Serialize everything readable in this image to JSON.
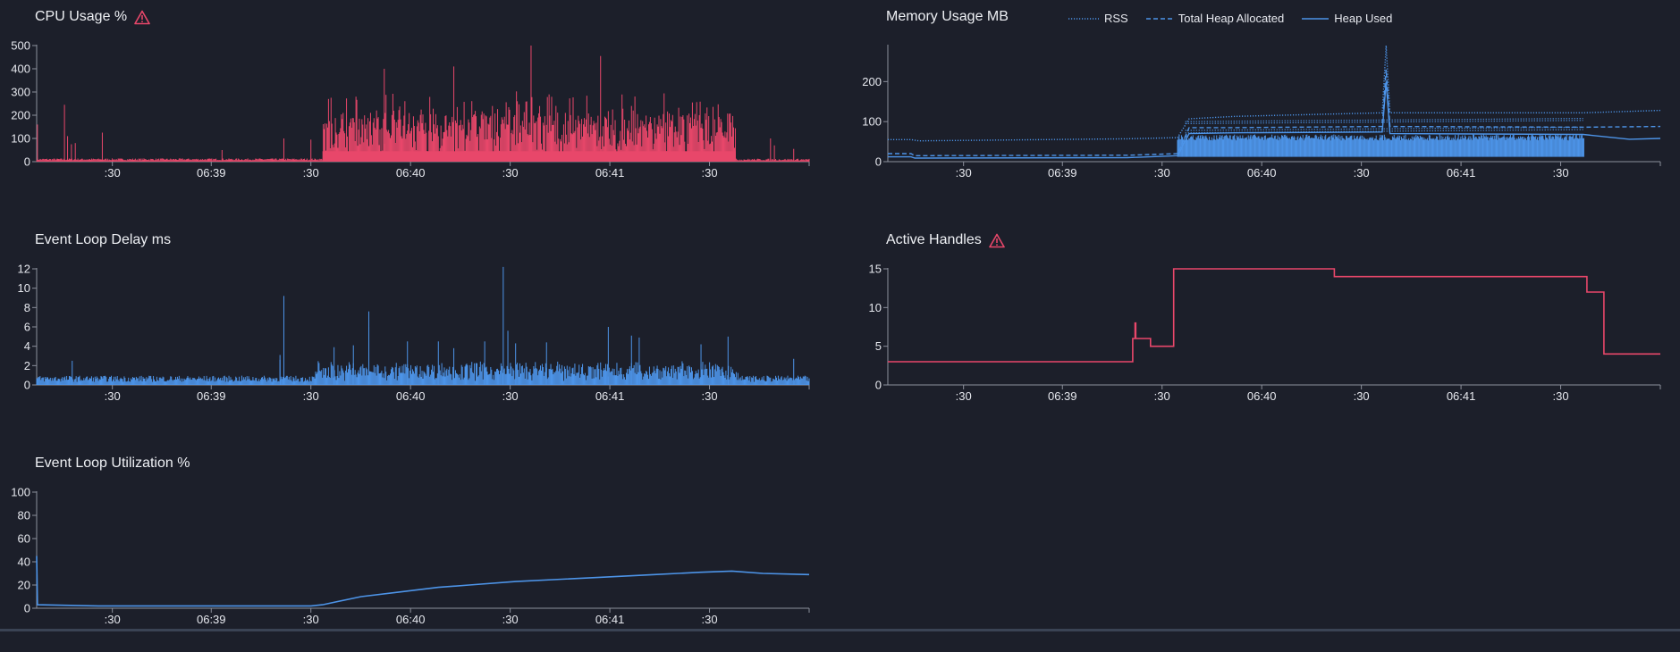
{
  "colors": {
    "background": "#1c1f2a",
    "red": "#e8476a",
    "blue": "#4d94e8",
    "axis": "#8c909c",
    "text": "#e6e8ee"
  },
  "x_ticks": [
    ":30",
    "06:39",
    ":30",
    "06:40",
    ":30",
    "06:41",
    ":30"
  ],
  "icons": {
    "warning": "warning-triangle-icon"
  },
  "chart_data": [
    {
      "id": "cpu",
      "type": "bar",
      "title": "CPU Usage %",
      "warning": true,
      "ylim": [
        0,
        500
      ],
      "yticks": [
        "0",
        "100",
        "200",
        "300",
        "400",
        "500"
      ],
      "color": "#e8476a",
      "segments": [
        {
          "from": 0.0,
          "to": 0.37,
          "base": 6,
          "noise": 8,
          "spikes": [
            [
              0.001,
              160
            ],
            [
              0.036,
              245
            ],
            [
              0.04,
              110
            ],
            [
              0.045,
              75
            ],
            [
              0.05,
              80
            ],
            [
              0.085,
              125
            ],
            [
              0.24,
              50
            ],
            [
              0.32,
              100
            ],
            [
              0.355,
              95
            ]
          ]
        },
        {
          "from": 0.37,
          "to": 0.905,
          "base": 160,
          "noise": 160,
          "spikes": [
            [
              0.64,
              500
            ],
            [
              0.73,
              455
            ],
            [
              0.54,
              410
            ],
            [
              0.45,
              400
            ]
          ]
        },
        {
          "from": 0.905,
          "to": 1.0,
          "base": 5,
          "noise": 8,
          "spikes": [
            [
              0.95,
              100
            ],
            [
              0.955,
              70
            ],
            [
              0.98,
              55
            ]
          ]
        }
      ]
    },
    {
      "id": "memory",
      "type": "line",
      "title": "Memory Usage MB",
      "warning": false,
      "ylim": [
        0,
        290
      ],
      "yticks": [
        "0",
        "100",
        "200"
      ],
      "series": [
        {
          "name": "RSS",
          "style": "dotted",
          "points": [
            [
              0.0,
              55
            ],
            [
              0.03,
              55
            ],
            [
              0.04,
              52
            ],
            [
              0.31,
              57
            ],
            [
              0.375,
              60
            ],
            [
              0.39,
              107
            ],
            [
              0.45,
              113
            ],
            [
              0.64,
              122
            ],
            [
              0.645,
              290
            ],
            [
              0.65,
              122
            ],
            [
              0.9,
              122
            ],
            [
              1.0,
              128
            ]
          ]
        },
        {
          "name": "Total Heap Allocated",
          "style": "dashed",
          "points": [
            [
              0.0,
              20
            ],
            [
              0.03,
              20
            ],
            [
              0.035,
              15
            ],
            [
              0.31,
              16
            ],
            [
              0.375,
              20
            ],
            [
              0.39,
              85
            ],
            [
              0.45,
              85
            ],
            [
              0.64,
              88
            ],
            [
              0.645,
              230
            ],
            [
              0.65,
              88
            ],
            [
              0.9,
              86
            ],
            [
              1.0,
              88
            ]
          ]
        },
        {
          "name": "Heap Used",
          "style": "solid",
          "points": [
            [
              0.0,
              12
            ],
            [
              0.03,
              12
            ],
            [
              0.035,
              9
            ],
            [
              0.31,
              10
            ],
            [
              0.375,
              15
            ],
            [
              0.39,
              70
            ],
            [
              0.45,
              72
            ],
            [
              0.64,
              74
            ],
            [
              0.645,
              200
            ],
            [
              0.65,
              70
            ],
            [
              0.9,
              68
            ],
            [
              0.96,
              56
            ],
            [
              1.0,
              58
            ]
          ]
        }
      ],
      "heap_fill": {
        "from": 0.375,
        "to": 0.902,
        "low": 12,
        "high": 68
      }
    },
    {
      "id": "eld",
      "type": "line",
      "title": "Event Loop Delay ms",
      "warning": false,
      "ylim": [
        0,
        12
      ],
      "yticks": [
        "0",
        "2",
        "4",
        "6",
        "8",
        "10",
        "12"
      ],
      "color": "#4d94e8",
      "baseline": 0.8,
      "spikes": [
        [
          0.046,
          2.5
        ],
        [
          0.315,
          2.6
        ],
        [
          0.315,
          3.1
        ],
        [
          0.32,
          9.2
        ],
        [
          0.385,
          3.9
        ],
        [
          0.41,
          4.1
        ],
        [
          0.43,
          7.6
        ],
        [
          0.43,
          6.0
        ],
        [
          0.48,
          4.5
        ],
        [
          0.52,
          4.5
        ],
        [
          0.54,
          3.8
        ],
        [
          0.58,
          4.5
        ],
        [
          0.604,
          12.2
        ],
        [
          0.61,
          5.6
        ],
        [
          0.62,
          4.3
        ],
        [
          0.66,
          4.4
        ],
        [
          0.74,
          6.0
        ],
        [
          0.77,
          5.1
        ],
        [
          0.78,
          4.9
        ],
        [
          0.86,
          4.2
        ],
        [
          0.895,
          5.0
        ],
        [
          0.98,
          2.7
        ]
      ]
    },
    {
      "id": "handles",
      "type": "line",
      "title": "Active Handles",
      "warning": true,
      "ylim": [
        0,
        15
      ],
      "yticks": [
        "0",
        "5",
        "10",
        "15"
      ],
      "color": "#e8476a",
      "points": [
        [
          0.0,
          3
        ],
        [
          0.317,
          3
        ],
        [
          0.317,
          6
        ],
        [
          0.32,
          6
        ],
        [
          0.32,
          8
        ],
        [
          0.321,
          8
        ],
        [
          0.321,
          6
        ],
        [
          0.34,
          6
        ],
        [
          0.34,
          5
        ],
        [
          0.37,
          5
        ],
        [
          0.37,
          15
        ],
        [
          0.578,
          15
        ],
        [
          0.578,
          14
        ],
        [
          0.905,
          14
        ],
        [
          0.905,
          12
        ],
        [
          0.927,
          12
        ],
        [
          0.927,
          4
        ],
        [
          1.0,
          4
        ]
      ]
    },
    {
      "id": "elu",
      "type": "line",
      "title": "Event Loop Utilization %",
      "warning": false,
      "ylim": [
        0,
        100
      ],
      "yticks": [
        "0",
        "20",
        "40",
        "60",
        "80",
        "100"
      ],
      "color": "#4d94e8",
      "points": [
        [
          0.0,
          45
        ],
        [
          0.001,
          3
        ],
        [
          0.08,
          2
        ],
        [
          0.355,
          2
        ],
        [
          0.37,
          3
        ],
        [
          0.42,
          10
        ],
        [
          0.47,
          14
        ],
        [
          0.52,
          18
        ],
        [
          0.56,
          20
        ],
        [
          0.62,
          23
        ],
        [
          0.68,
          25
        ],
        [
          0.74,
          27
        ],
        [
          0.8,
          29
        ],
        [
          0.86,
          31
        ],
        [
          0.9,
          32
        ],
        [
          0.94,
          30
        ],
        [
          1.0,
          29
        ]
      ]
    }
  ]
}
